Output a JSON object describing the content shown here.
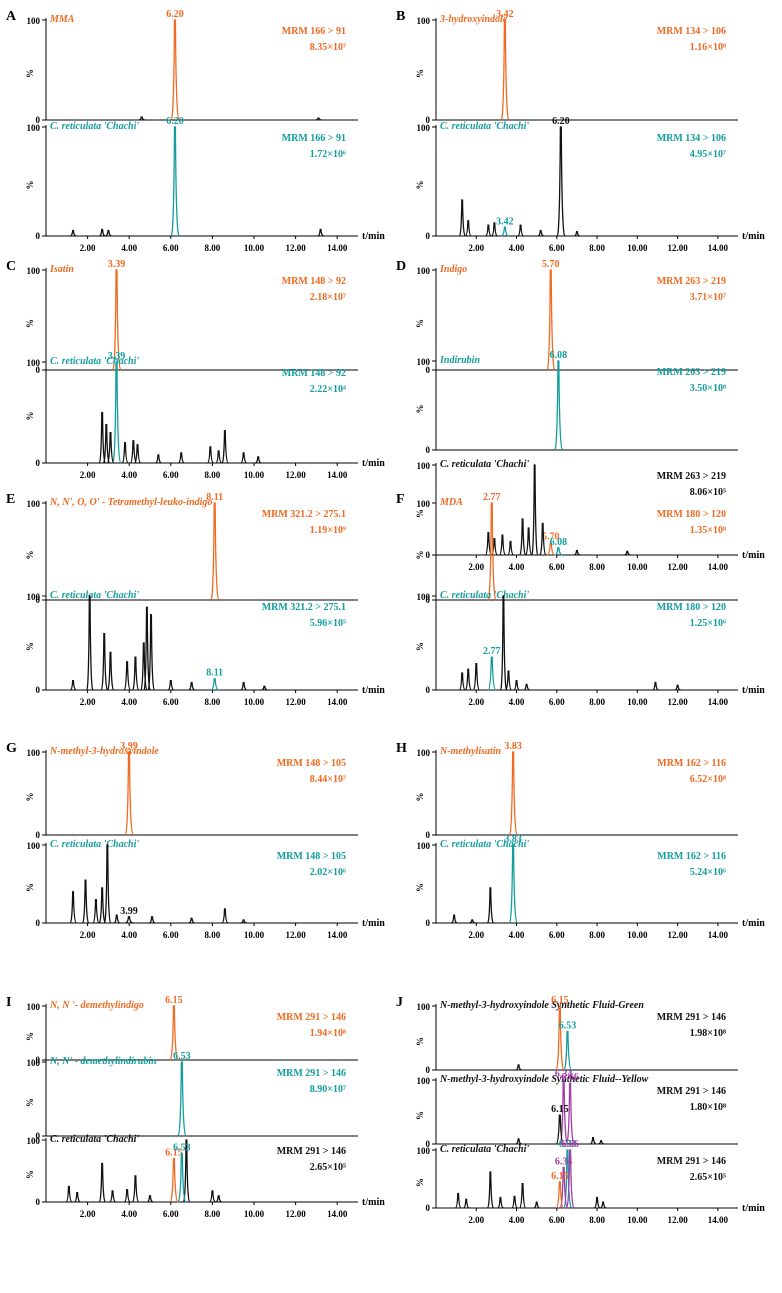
{
  "colors": {
    "orange": "#F06A22",
    "teal": "#139E9E",
    "black": "#111111",
    "purple": "#A43DA8"
  },
  "chart_data": [
    {
      "panel": "A",
      "type": "line",
      "xlabel": "t/min",
      "x_ticks": [
        "2.00",
        "4.00",
        "6.00",
        "8.00",
        "10.00",
        "12.00",
        "14.00"
      ],
      "xlim": [
        0,
        15
      ],
      "traces": [
        {
          "label": "MMA",
          "color": "orange",
          "mrm": "MRM 166 > 91",
          "intensity": "8.35×10⁷",
          "peaks": [
            {
              "t": 6.2,
              "h": 100,
              "color": "orange",
              "label": "6.20"
            },
            {
              "t": 4.6,
              "h": 3
            },
            {
              "t": 13.1,
              "h": 2
            }
          ]
        },
        {
          "label": "C. reticulata 'Chachi'",
          "color": "teal",
          "mrm": "MRM 166 > 91",
          "intensity": "1.72×10⁶",
          "peaks": [
            {
              "t": 6.2,
              "h": 100,
              "color": "teal",
              "label": "6.20"
            },
            {
              "t": 1.3,
              "h": 5
            },
            {
              "t": 2.7,
              "h": 6
            },
            {
              "t": 3.0,
              "h": 5
            },
            {
              "t": 13.2,
              "h": 6
            }
          ]
        }
      ]
    },
    {
      "panel": "B",
      "type": "line",
      "xlabel": "t/min",
      "x_ticks": [
        "2.00",
        "4.00",
        "6.00",
        "8.00",
        "10.00",
        "12.00",
        "14.00"
      ],
      "xlim": [
        0,
        15
      ],
      "traces": [
        {
          "label": "3-hydroxyindole",
          "color": "orange",
          "mrm": "MRM 134 > 106",
          "intensity": "1.16×10⁸",
          "peaks": [
            {
              "t": 3.42,
              "h": 100,
              "color": "orange",
              "label": "3.42"
            }
          ]
        },
        {
          "label": "C. reticulata 'Chachi'",
          "color": "teal",
          "mrm": "MRM 134 > 106",
          "intensity": "4.95×10⁷",
          "peaks": [
            {
              "t": 6.2,
              "h": 100,
              "color": "black",
              "label": "6.20"
            },
            {
              "t": 3.42,
              "h": 8,
              "color": "teal",
              "label": "3.42"
            },
            {
              "t": 1.3,
              "h": 33
            },
            {
              "t": 1.6,
              "h": 14
            },
            {
              "t": 2.6,
              "h": 10
            },
            {
              "t": 2.9,
              "h": 12
            },
            {
              "t": 4.2,
              "h": 10
            },
            {
              "t": 5.2,
              "h": 5
            },
            {
              "t": 7.0,
              "h": 4
            }
          ]
        }
      ]
    },
    {
      "panel": "C",
      "type": "line",
      "xlabel": "t/min",
      "x_ticks": [
        "2.00",
        "4.00",
        "6.00",
        "8.00",
        "10.00",
        "12.00",
        "14.00"
      ],
      "xlim": [
        0,
        15
      ],
      "traces": [
        {
          "label": "Isatin",
          "color": "orange",
          "mrm": "MRM 148 > 92",
          "intensity": "2.18×10⁷",
          "peaks": [
            {
              "t": 3.39,
              "h": 100,
              "color": "orange",
              "label": "3.39"
            }
          ]
        },
        {
          "label": "C. reticulata 'Chachi'",
          "color": "teal",
          "mrm": "MRM 148 > 92",
          "intensity": "2.22×10⁴",
          "peaks": [
            {
              "t": 3.39,
              "h": 100,
              "color": "teal",
              "label": "3.39"
            },
            {
              "t": 2.7,
              "h": 50
            },
            {
              "t": 2.9,
              "h": 38
            },
            {
              "t": 3.1,
              "h": 30
            },
            {
              "t": 3.8,
              "h": 20
            },
            {
              "t": 4.2,
              "h": 22
            },
            {
              "t": 4.4,
              "h": 18
            },
            {
              "t": 5.4,
              "h": 8
            },
            {
              "t": 6.5,
              "h": 10
            },
            {
              "t": 7.9,
              "h": 16
            },
            {
              "t": 8.3,
              "h": 12
            },
            {
              "t": 8.6,
              "h": 32
            },
            {
              "t": 9.5,
              "h": 10
            },
            {
              "t": 10.2,
              "h": 6
            }
          ]
        }
      ]
    },
    {
      "panel": "D",
      "type": "line",
      "xlabel": "t/min",
      "x_ticks": [
        "2.00",
        "4.00",
        "6.00",
        "8.00",
        "10.00",
        "12.00",
        "14.00"
      ],
      "xlim": [
        0,
        15
      ],
      "traces": [
        {
          "label": "Indigo",
          "color": "orange",
          "mrm": "MRM 263 > 219",
          "intensity": "3.71×10⁷",
          "peaks": [
            {
              "t": 5.7,
              "h": 100,
              "color": "orange",
              "label": "5.70"
            }
          ]
        },
        {
          "label": "Indirubin",
          "color": "teal",
          "mrm": "MRM 263 > 219",
          "intensity": "3.50×10⁸",
          "peaks": [
            {
              "t": 6.08,
              "h": 100,
              "color": "teal",
              "label": "6.08"
            }
          ]
        },
        {
          "label": "C. reticulata 'Chachi'",
          "color": "black",
          "mrm": "MRM 263 > 219",
          "intensity": "8.06×10⁵",
          "peaks": [
            {
              "t": 4.9,
              "h": 100
            },
            {
              "t": 5.7,
              "h": 14,
              "color": "orange",
              "label": "5.70"
            },
            {
              "t": 6.08,
              "h": 8,
              "color": "teal",
              "label": "6.08"
            },
            {
              "t": 2.6,
              "h": 25
            },
            {
              "t": 2.9,
              "h": 18
            },
            {
              "t": 3.3,
              "h": 22
            },
            {
              "t": 3.7,
              "h": 15
            },
            {
              "t": 4.3,
              "h": 40
            },
            {
              "t": 4.6,
              "h": 30
            },
            {
              "t": 5.3,
              "h": 35
            },
            {
              "t": 7.0,
              "h": 5
            },
            {
              "t": 9.5,
              "h": 4
            }
          ]
        }
      ]
    },
    {
      "panel": "E",
      "type": "line",
      "xlabel": "t/min",
      "x_ticks": [
        "2.00",
        "4.00",
        "6.00",
        "8.00",
        "10.00",
        "12.00",
        "14.00"
      ],
      "xlim": [
        0,
        15
      ],
      "traces": [
        {
          "label": "N, N', O, O' - Tetramethyl-leuko-indigo",
          "color": "orange",
          "mrm": "MRM 321.2 > 275.1",
          "intensity": "1.19×10⁹",
          "peaks": [
            {
              "t": 8.11,
              "h": 100,
              "color": "orange",
              "label": "8.11"
            }
          ]
        },
        {
          "label": "C. reticulata 'Chachi'",
          "color": "teal",
          "mrm": "MRM 321.2 > 275.1",
          "intensity": "5.96×10⁵",
          "peaks": [
            {
              "t": 2.1,
              "h": 100
            },
            {
              "t": 2.8,
              "h": 60
            },
            {
              "t": 3.1,
              "h": 40
            },
            {
              "t": 3.9,
              "h": 30
            },
            {
              "t": 4.3,
              "h": 35
            },
            {
              "t": 4.7,
              "h": 50
            },
            {
              "t": 4.85,
              "h": 88
            },
            {
              "t": 5.05,
              "h": 80
            },
            {
              "t": 1.3,
              "h": 10
            },
            {
              "t": 6.0,
              "h": 10
            },
            {
              "t": 7.0,
              "h": 8
            },
            {
              "t": 8.11,
              "h": 12,
              "color": "teal",
              "label": "8.11"
            },
            {
              "t": 9.5,
              "h": 8
            },
            {
              "t": 10.5,
              "h": 4
            }
          ]
        }
      ]
    },
    {
      "panel": "F",
      "type": "line",
      "xlabel": "t/min",
      "x_ticks": [
        "2.00",
        "4.00",
        "6.00",
        "8.00",
        "10.00",
        "12.00",
        "14.00"
      ],
      "xlim": [
        0,
        15
      ],
      "traces": [
        {
          "label": "MDA",
          "color": "orange",
          "mrm": "MRM 180 > 120",
          "intensity": "1.35×10⁸",
          "peaks": [
            {
              "t": 2.77,
              "h": 100,
              "color": "orange",
              "label": "2.77"
            }
          ]
        },
        {
          "label": "C. reticulata 'Chachi'",
          "color": "teal",
          "mrm": "MRM 180 > 120",
          "intensity": "1.25×10⁶",
          "peaks": [
            {
              "t": 3.35,
              "h": 100
            },
            {
              "t": 2.77,
              "h": 35,
              "color": "teal",
              "label": "2.77"
            },
            {
              "t": 1.3,
              "h": 18
            },
            {
              "t": 1.6,
              "h": 22
            },
            {
              "t": 2.0,
              "h": 28
            },
            {
              "t": 3.6,
              "h": 20
            },
            {
              "t": 4.0,
              "h": 10
            },
            {
              "t": 4.5,
              "h": 6
            },
            {
              "t": 10.9,
              "h": 8
            },
            {
              "t": 12.0,
              "h": 5
            }
          ]
        }
      ]
    },
    {
      "panel": "G",
      "type": "line",
      "xlabel": "t/min",
      "x_ticks": [
        "2.00",
        "4.00",
        "6.00",
        "8.00",
        "10.00",
        "12.00",
        "14.00"
      ],
      "xlim": [
        0,
        15
      ],
      "traces": [
        {
          "label": "N-methyl-3-hydroxyindole",
          "color": "orange",
          "mrm": "MRM 148 > 105",
          "intensity": "8.44×10⁷",
          "peaks": [
            {
              "t": 3.99,
              "h": 100,
              "color": "orange",
              "label": "3.99"
            }
          ]
        },
        {
          "label": "C. reticulata 'Chachi'",
          "color": "teal",
          "mrm": "MRM 148 > 105",
          "intensity": "2.02×10⁶",
          "peaks": [
            {
              "t": 2.95,
              "h": 100
            },
            {
              "t": 1.3,
              "h": 40
            },
            {
              "t": 1.9,
              "h": 55
            },
            {
              "t": 2.4,
              "h": 30
            },
            {
              "t": 2.7,
              "h": 45
            },
            {
              "t": 3.99,
              "h": 8,
              "color": "black",
              "label": "3.99"
            },
            {
              "t": 3.4,
              "h": 10
            },
            {
              "t": 5.1,
              "h": 8
            },
            {
              "t": 7.0,
              "h": 6
            },
            {
              "t": 8.6,
              "h": 18
            },
            {
              "t": 9.5,
              "h": 4
            }
          ]
        }
      ]
    },
    {
      "panel": "H",
      "type": "line",
      "xlabel": "t/min",
      "x_ticks": [
        "2.00",
        "4.00",
        "6.00",
        "8.00",
        "10.00",
        "12.00",
        "14.00"
      ],
      "xlim": [
        0,
        15
      ],
      "traces": [
        {
          "label": "N-methylisatin",
          "color": "orange",
          "mrm": "MRM 162 > 116",
          "intensity": "6.52×10⁸",
          "peaks": [
            {
              "t": 3.83,
              "h": 100,
              "color": "orange",
              "label": "3.83"
            }
          ]
        },
        {
          "label": "C. reticulata 'Chachi'",
          "color": "teal",
          "mrm": "MRM 162 > 116",
          "intensity": "5.24×10⁶",
          "peaks": [
            {
              "t": 3.83,
              "h": 100,
              "color": "teal",
              "label": "3.83"
            },
            {
              "t": 2.7,
              "h": 45
            },
            {
              "t": 0.9,
              "h": 10
            },
            {
              "t": 1.8,
              "h": 4
            }
          ]
        }
      ]
    },
    {
      "panel": "I",
      "type": "line",
      "xlabel": "t/min",
      "x_ticks": [
        "2.00",
        "4.00",
        "6.00",
        "8.00",
        "10.00",
        "12.00",
        "14.00"
      ],
      "xlim": [
        0,
        15
      ],
      "traces": [
        {
          "label": "N, N '- demethylindigo",
          "color": "orange",
          "mrm": "MRM 291 > 146",
          "intensity": "1.94×10⁸",
          "peaks": [
            {
              "t": 6.15,
              "h": 100,
              "color": "orange",
              "label": "6.15"
            }
          ]
        },
        {
          "label": "N, N' - demethylindirubin",
          "color": "teal",
          "mrm": "MRM 291 > 146",
          "intensity": "8.90×10⁷",
          "peaks": [
            {
              "t": 6.53,
              "h": 100,
              "color": "teal",
              "label": "6.53"
            }
          ]
        },
        {
          "label": "C. reticulata 'Chachi'",
          "color": "black",
          "mrm": "MRM 291 > 146",
          "intensity": "2.65×10⁵",
          "peaks": [
            {
              "t": 6.75,
              "h": 100
            },
            {
              "t": 6.15,
              "h": 70,
              "color": "orange",
              "label": "6.15"
            },
            {
              "t": 6.53,
              "h": 78,
              "color": "teal",
              "label": "6.53"
            },
            {
              "t": 1.1,
              "h": 25
            },
            {
              "t": 1.5,
              "h": 15
            },
            {
              "t": 2.7,
              "h": 62
            },
            {
              "t": 3.2,
              "h": 18
            },
            {
              "t": 3.9,
              "h": 20
            },
            {
              "t": 4.3,
              "h": 42
            },
            {
              "t": 5.0,
              "h": 10
            },
            {
              "t": 8.0,
              "h": 18
            },
            {
              "t": 8.3,
              "h": 10
            }
          ]
        }
      ]
    },
    {
      "panel": "J",
      "type": "line",
      "xlabel": "t/min",
      "x_ticks": [
        "2.00",
        "4.00",
        "6.00",
        "8.00",
        "10.00",
        "12.00",
        "14.00"
      ],
      "xlim": [
        0,
        15
      ],
      "traces": [
        {
          "label": "N-methyl-3-hydroxyindole Synthetic Fluid-Green",
          "color": "black",
          "mrm": "MRM 291 > 146",
          "intensity": "1.98×10⁸",
          "peaks": [
            {
              "t": 6.15,
              "h": 100,
              "color": "orange",
              "label": "6.15"
            },
            {
              "t": 6.53,
              "h": 60,
              "color": "teal",
              "label": "6.53"
            },
            {
              "t": 4.1,
              "h": 8
            }
          ]
        },
        {
          "label": "N-methyl-3-hydroxyindole Synthetic Fluid--Yellow",
          "color": "black",
          "mrm": "MRM 291 > 146",
          "intensity": "1.80×10⁸",
          "peaks": [
            {
              "t": 6.34,
              "h": 100,
              "color": "purple",
              "label": "6.34"
            },
            {
              "t": 6.66,
              "h": 95,
              "color": "purple",
              "label": "6.66"
            },
            {
              "t": 6.15,
              "h": 45,
              "color": "black",
              "label": "6.15"
            },
            {
              "t": 4.1,
              "h": 8
            },
            {
              "t": 7.8,
              "h": 10
            },
            {
              "t": 8.2,
              "h": 5
            }
          ]
        },
        {
          "label": "C. reticulata 'Chachi'",
          "color": "black",
          "mrm": "MRM 291 > 146",
          "intensity": "2.65×10⁵",
          "peaks": [
            {
              "t": 6.53,
              "h": 100,
              "color": "teal",
              "label": "6.53"
            },
            {
              "t": 6.34,
              "h": 70,
              "color": "purple",
              "label": "6.34"
            },
            {
              "t": 6.66,
              "h": 100,
              "color": "purple",
              "label": "6.66"
            },
            {
              "t": 6.15,
              "h": 45,
              "color": "orange",
              "label": "6.15"
            },
            {
              "t": 1.1,
              "h": 25
            },
            {
              "t": 1.5,
              "h": 15
            },
            {
              "t": 2.7,
              "h": 62
            },
            {
              "t": 3.2,
              "h": 18
            },
            {
              "t": 3.9,
              "h": 20
            },
            {
              "t": 4.3,
              "h": 42
            },
            {
              "t": 5.0,
              "h": 10
            },
            {
              "t": 8.0,
              "h": 18
            },
            {
              "t": 8.3,
              "h": 10
            }
          ]
        }
      ]
    }
  ]
}
